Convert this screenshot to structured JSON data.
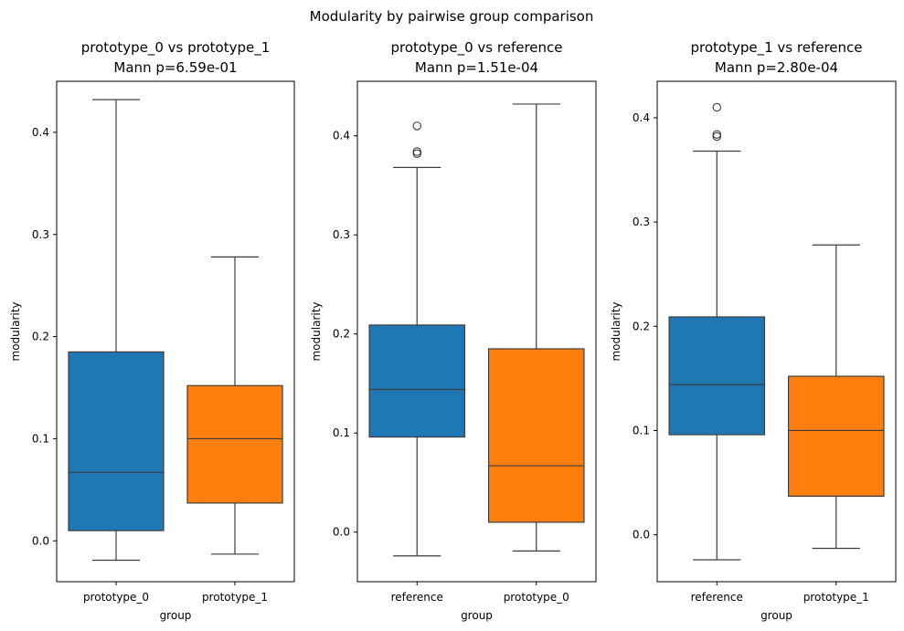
{
  "figure": {
    "suptitle": "Modularity by pairwise group comparison"
  },
  "colors": {
    "prototype_0": "#1f77b4",
    "prototype_1": "#ff7f0e",
    "reference": "#1f77b4",
    "edge": "#3d3d3d"
  },
  "chart_data": [
    {
      "type": "box",
      "title_line1": "prototype_0 vs prototype_1",
      "title_line2": "Mann p=6.59e-01",
      "xlabel": "group",
      "ylabel": "modularity",
      "ylim": [
        -0.04,
        0.45
      ],
      "yticks": [
        0.0,
        0.1,
        0.2,
        0.3,
        0.4
      ],
      "ytick_labels": [
        "0.0",
        "0.1",
        "0.2",
        "0.3",
        "0.4"
      ],
      "categories": [
        "prototype_0",
        "prototype_1"
      ],
      "boxes": [
        {
          "group": "prototype_0",
          "color_key": "prototype_0",
          "whislo": -0.019,
          "q1": 0.01,
          "median": 0.067,
          "q3": 0.185,
          "whishi": 0.432,
          "fliers": []
        },
        {
          "group": "prototype_1",
          "color_key": "prototype_1",
          "whislo": -0.013,
          "q1": 0.037,
          "median": 0.1,
          "q3": 0.152,
          "whishi": 0.278,
          "fliers": []
        }
      ]
    },
    {
      "type": "box",
      "title_line1": "prototype_0 vs reference",
      "title_line2": "Mann p=1.51e-04",
      "xlabel": "group",
      "ylabel": "modularity",
      "ylim": [
        -0.05,
        0.455
      ],
      "yticks": [
        0.0,
        0.1,
        0.2,
        0.3,
        0.4
      ],
      "ytick_labels": [
        "0.0",
        "0.1",
        "0.2",
        "0.3",
        "0.4"
      ],
      "categories": [
        "reference",
        "prototype_0"
      ],
      "boxes": [
        {
          "group": "reference",
          "color_key": "reference",
          "whislo": -0.024,
          "q1": 0.096,
          "median": 0.144,
          "q3": 0.209,
          "whishi": 0.368,
          "fliers": [
            0.382,
            0.384,
            0.41
          ]
        },
        {
          "group": "prototype_0",
          "color_key": "prototype_1",
          "whislo": -0.019,
          "q1": 0.01,
          "median": 0.067,
          "q3": 0.185,
          "whishi": 0.432,
          "fliers": []
        }
      ]
    },
    {
      "type": "box",
      "title_line1": "prototype_1 vs reference",
      "title_line2": "Mann p=2.80e-04",
      "xlabel": "group",
      "ylabel": "modularity",
      "ylim": [
        -0.045,
        0.435
      ],
      "yticks": [
        0.0,
        0.1,
        0.2,
        0.3,
        0.4
      ],
      "ytick_labels": [
        "0.0",
        "0.1",
        "0.2",
        "0.3",
        "0.4"
      ],
      "categories": [
        "reference",
        "prototype_1"
      ],
      "boxes": [
        {
          "group": "reference",
          "color_key": "reference",
          "whislo": -0.024,
          "q1": 0.096,
          "median": 0.144,
          "q3": 0.209,
          "whishi": 0.368,
          "fliers": [
            0.382,
            0.384,
            0.41
          ]
        },
        {
          "group": "prototype_1",
          "color_key": "prototype_1",
          "whislo": -0.013,
          "q1": 0.037,
          "median": 0.1,
          "q3": 0.152,
          "whishi": 0.278,
          "fliers": []
        }
      ]
    }
  ]
}
